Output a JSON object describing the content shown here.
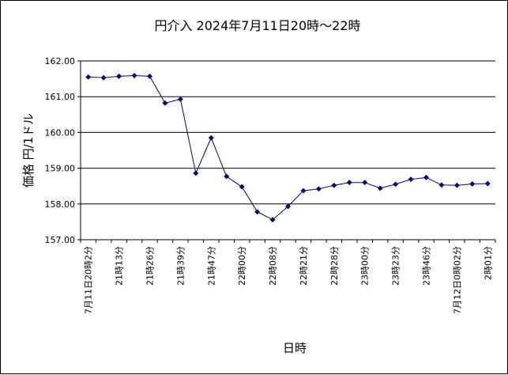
{
  "chart_data": {
    "type": "line",
    "title": "円介入  2024年7月11日20時〜22時",
    "xlabel": "日時",
    "ylabel": "価格  円/1ドル",
    "ylim": [
      157,
      162
    ],
    "yticks": [
      "157.00",
      "158.00",
      "159.00",
      "160.00",
      "161.00",
      "162.00"
    ],
    "grid": "horizontal",
    "legend": "none",
    "colors": {
      "line": "#000080",
      "marker": "#000080",
      "grid": "#000000"
    },
    "x_tick_labels": [
      "7月11日20時2分",
      "21時13分",
      "21時26分",
      "21時39分",
      "21時47分",
      "22時00分",
      "22時08分",
      "22時21分",
      "22時28分",
      "23時00分",
      "23時23分",
      "23時46分",
      "7月12日0時02分",
      "2時01分"
    ],
    "series": [
      {
        "values": [
          161.55,
          161.53,
          161.57,
          161.59,
          161.57,
          160.82,
          160.93,
          158.86,
          159.85,
          158.77,
          158.48,
          157.78,
          157.56,
          157.93,
          158.37,
          158.42,
          158.52,
          158.6,
          158.6,
          158.44,
          158.55,
          158.69,
          158.74,
          158.53,
          158.52,
          158.56,
          158.57
        ]
      }
    ]
  }
}
